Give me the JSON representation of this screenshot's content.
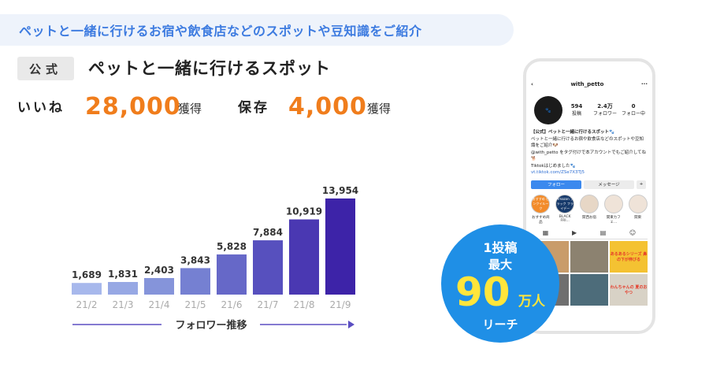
{
  "banner": {
    "text": "ペットと一緒に行けるお宿や飲食店などのスポットや豆知識をご紹介"
  },
  "account": {
    "official_tag": "公式",
    "name": "ペットと一緒に行けるスポット"
  },
  "stats": {
    "likes_label": "いいね",
    "likes_value": "28,000",
    "likes_unit": "獲得",
    "saves_label": "保存",
    "saves_value": "4,000",
    "saves_unit": "獲得"
  },
  "chart_data": {
    "type": "bar",
    "categories": [
      "21/2",
      "21/3",
      "21/4",
      "21/5",
      "21/6",
      "21/7",
      "21/8",
      "21/9"
    ],
    "values": [
      1689,
      1831,
      2403,
      3843,
      5828,
      7884,
      10919,
      13954
    ],
    "value_labels": [
      "1,689",
      "1,831",
      "2,403",
      "3,843",
      "5,828",
      "7,884",
      "10,919",
      "13,954"
    ],
    "xlabel": "フォロワー推移",
    "colors": [
      "#a7b8ec",
      "#97a8e4",
      "#8594da",
      "#7580d2",
      "#6668c8",
      "#5750be",
      "#4a38b2",
      "#3d23a8"
    ],
    "ylim": [
      0,
      13954
    ]
  },
  "phone": {
    "username": "with_petto",
    "posts": "594",
    "posts_label": "投稿",
    "followers": "2.4万",
    "followers_label": "フォロワー",
    "following": "0",
    "following_label": "フォロー中",
    "bio_line1": "【公式】ペットと一緒に行けるスポット🐾",
    "bio_line2": "ペットと一緒に行けるお宿や飲食店などのスポットや豆知識をご紹介🐶",
    "bio_line3": "@with_petto をタグ付けで本アカウントでもご紹介してね🐕",
    "bio_line4": "Tiktokはじめました🐾",
    "bio_link": "vt.tiktok.com/ZSe7X3TJ5",
    "follow_btn": "フォロー",
    "message_btn": "メッセージ",
    "highlights": [
      "おすすめ商品",
      "BLACK FRI...",
      "関西お宿",
      "関東カフェ...",
      "関東"
    ],
    "highlight_colors": [
      "#f28b2a",
      "#173a6b",
      "#e7d7c6",
      "#efe3d8",
      "#efe3d8"
    ],
    "highlight_inner": [
      "おすすめ ピンクイルーク",
      "Amazon ブラック フライデー",
      "",
      "",
      ""
    ],
    "grid_colors": [
      "#c99c6a",
      "#8c8270",
      "#f4c232",
      "#6f6f6f",
      "#4d6c7a",
      "#d8d2c6"
    ],
    "grid_texts": [
      "",
      "",
      "あるあるシリーズ 鼻の下が伸びる",
      "",
      "",
      "わんちゃんの 夏のおやつ"
    ]
  },
  "badge": {
    "line1": "1投稿",
    "line2": "最大",
    "number": "90",
    "unit": "万人",
    "line4": "リーチ"
  }
}
